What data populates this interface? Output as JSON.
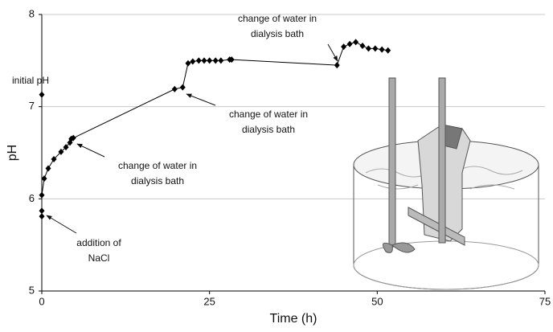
{
  "chart_data": {
    "type": "line",
    "x_label": "Time (h)",
    "y_label": "pH",
    "xlim": [
      0,
      75
    ],
    "xticks": [
      0,
      25,
      50,
      75
    ],
    "ylim": [
      5,
      8
    ],
    "yticks": [
      5,
      6,
      7,
      8
    ],
    "grid": true,
    "series": [
      {
        "color": "#000000",
        "line": true,
        "x": [
          0,
          0,
          0,
          0.36,
          0.96,
          1.8,
          2.87,
          3.6,
          4.2,
          4.4,
          4.7,
          19.8,
          21.0,
          21.8,
          22.5,
          23.4,
          24.2,
          25.0,
          25.9,
          26.7,
          28.0,
          28.3,
          44.0,
          45.0,
          45.9,
          46.8,
          47.8,
          48.7,
          49.7,
          50.7,
          51.6
        ],
        "values": [
          5.81,
          5.87,
          6.04,
          6.22,
          6.33,
          6.43,
          6.51,
          6.56,
          6.61,
          6.65,
          6.66,
          7.19,
          7.21,
          7.47,
          7.49,
          7.5,
          7.5,
          7.5,
          7.5,
          7.5,
          7.51,
          7.51,
          7.45,
          7.65,
          7.68,
          7.7,
          7.66,
          7.63,
          7.63,
          7.62,
          7.61
        ]
      },
      {
        "color": "#000000",
        "line": false,
        "x": [
          0
        ],
        "values": [
          7.13
        ]
      }
    ],
    "annotations": [
      [
        "initial pH"
      ],
      [
        "addition of",
        "NaCl"
      ],
      [
        "change of water in",
        "dialysis bath"
      ],
      [
        "change of water in",
        "dialysis bath"
      ],
      [
        "change of water in",
        "dialysis bath"
      ]
    ]
  }
}
